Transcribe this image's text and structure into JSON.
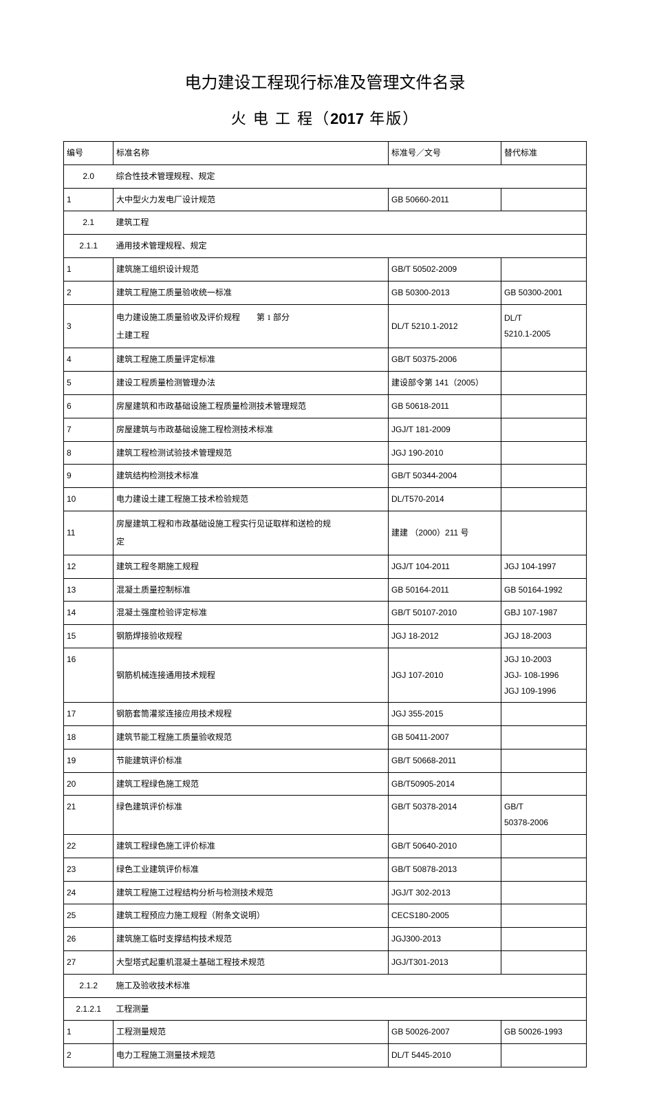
{
  "title_main": "电力建设工程现行标准及管理文件名录",
  "subtitle_prefix": "火 电 工 程（",
  "subtitle_year": "2017",
  "subtitle_suffix": " 年版）",
  "headers": {
    "id": "编号",
    "name": "标准名称",
    "std": "标准号／文号",
    "rep": "替代标准"
  },
  "sections": [
    {
      "type": "section",
      "num": "2.0",
      "label": "综合性技术管理规程、规定"
    },
    {
      "type": "row",
      "id": "1",
      "name": "大中型火力发电厂设计规范",
      "std": "GB 50660-2011",
      "rep": ""
    },
    {
      "type": "section",
      "num": "2.1",
      "label": "建筑工程"
    },
    {
      "type": "section",
      "num": "2.1.1",
      "label": "通用技术管理规程、规定"
    },
    {
      "type": "row",
      "id": "1",
      "name": "建筑施工组织设计规范",
      "std": "GB/T 50502-2009",
      "rep": ""
    },
    {
      "type": "row",
      "id": "2",
      "name": "建筑工程施工质量验收统一标准",
      "std": "GB 50300-2013",
      "rep": "GB 50300-2001"
    },
    {
      "type": "row2",
      "id": "3",
      "name1": "电力建设施工质量验收及评价规程  第 1 部分",
      "name2": "土建工程",
      "std": "DL/T 5210.1-2012",
      "rep": "DL/T 5210.1-2005"
    },
    {
      "type": "row",
      "id": "4",
      "name": "建筑工程施工质量评定标准",
      "std": "GB/T 50375-2006",
      "rep": ""
    },
    {
      "type": "row",
      "id": "5",
      "name": "建设工程质量检测管理办法",
      "std": "建设部令第  141（2005）",
      "rep": ""
    },
    {
      "type": "row",
      "id": "6",
      "name": "房屋建筑和市政基础设施工程质量检测技术管理规范",
      "std": "GB 50618-2011",
      "rep": ""
    },
    {
      "type": "row",
      "id": "7",
      "name": "房屋建筑与市政基础设施工程检测技术标准",
      "std": "JGJ/T 181-2009",
      "rep": ""
    },
    {
      "type": "row",
      "id": "8",
      "name": "建筑工程检测试验技术管理规范",
      "std": "JGJ 190-2010",
      "rep": ""
    },
    {
      "type": "row",
      "id": "9",
      "name": "建筑结构检测技术标准",
      "std": "GB/T 50344-2004",
      "rep": ""
    },
    {
      "type": "row",
      "id": "10",
      "name": "电力建设土建工程施工技术检验规范",
      "std": "DL/T570-2014",
      "rep": ""
    },
    {
      "type": "row2",
      "id": "11",
      "name1": "房屋建筑工程和市政基础设施工程实行见证取样和送检的规",
      "name2": "定",
      "std": "建建 （2000）211 号",
      "rep": ""
    },
    {
      "type": "row",
      "id": "12",
      "name": "建筑工程冬期施工规程",
      "std": "JGJ/T 104-2011",
      "rep": "JGJ 104-1997"
    },
    {
      "type": "row",
      "id": "13",
      "name": "混凝土质量控制标准",
      "std": "GB 50164-2011",
      "rep": "GB 50164-1992"
    },
    {
      "type": "row",
      "id": "14",
      "name": "混凝土强度检验评定标准",
      "std": "GB/T 50107-2010",
      "rep": "GBJ 107-1987"
    },
    {
      "type": "row",
      "id": "15",
      "name": "钢筋焊接验收规程",
      "std": "JGJ 18-2012",
      "rep": "JGJ 18-2003"
    },
    {
      "type": "row3",
      "id": "16",
      "name": "钢筋机械连接通用技术规程",
      "std": "JGJ 107-2010",
      "rep1": "JGJ 10-2003",
      "rep2": "JGJ- 108-1996",
      "rep3": "JGJ 109-1996"
    },
    {
      "type": "row",
      "id": "17",
      "name": "钢筋套筒灌浆连接应用技术规程",
      "std": "JGJ 355-2015",
      "rep": ""
    },
    {
      "type": "row",
      "id": "18",
      "name": "建筑节能工程施工质量验收规范",
      "std": "GB 50411-2007",
      "rep": ""
    },
    {
      "type": "row",
      "id": "19",
      "name": "节能建筑评价标准",
      "std": "GB/T 50668-2011",
      "rep": ""
    },
    {
      "type": "row",
      "id": "20",
      "name": "建筑工程绿色施工规范",
      "std": "GB/T50905-2014",
      "rep": ""
    },
    {
      "type": "row2b",
      "id": "21",
      "name": "绿色建筑评价标准",
      "std": "GB/T 50378-2014",
      "rep1": "GB/T",
      "rep2": "50378-2006"
    },
    {
      "type": "row",
      "id": "22",
      "name": "建筑工程绿色施工评价标准",
      "std": "GB/T 50640-2010",
      "rep": ""
    },
    {
      "type": "row",
      "id": "23",
      "name": "绿色工业建筑评价标准",
      "std": "GB/T 50878-2013",
      "rep": ""
    },
    {
      "type": "row",
      "id": "24",
      "name": "建筑工程施工过程结构分析与检测技术规范",
      "std": "JGJ/T 302-2013",
      "rep": ""
    },
    {
      "type": "row",
      "id": "25",
      "name": "建筑工程预应力施工规程（附条文说明）",
      "std": "CECS180-2005",
      "rep": ""
    },
    {
      "type": "row",
      "id": "26",
      "name": "建筑施工临时支撑结构技术规范",
      "std": "JGJ300-2013",
      "rep": ""
    },
    {
      "type": "row",
      "id": "27",
      "name": "大型塔式起重机混凝土基础工程技术规范",
      "std": "JGJ/T301-2013",
      "rep": ""
    },
    {
      "type": "section",
      "num": "2.1.2",
      "label": "施工及验收技术标准"
    },
    {
      "type": "section",
      "num": "2.1.2.1",
      "label": "工程测量"
    },
    {
      "type": "row",
      "id": "1",
      "name": "工程测量规范",
      "std": "GB 50026-2007",
      "rep": "GB 50026-1993"
    },
    {
      "type": "row",
      "id": "2",
      "name": "电力工程施工测量技术规范",
      "std": "DL/T 5445-2010",
      "rep": ""
    }
  ]
}
